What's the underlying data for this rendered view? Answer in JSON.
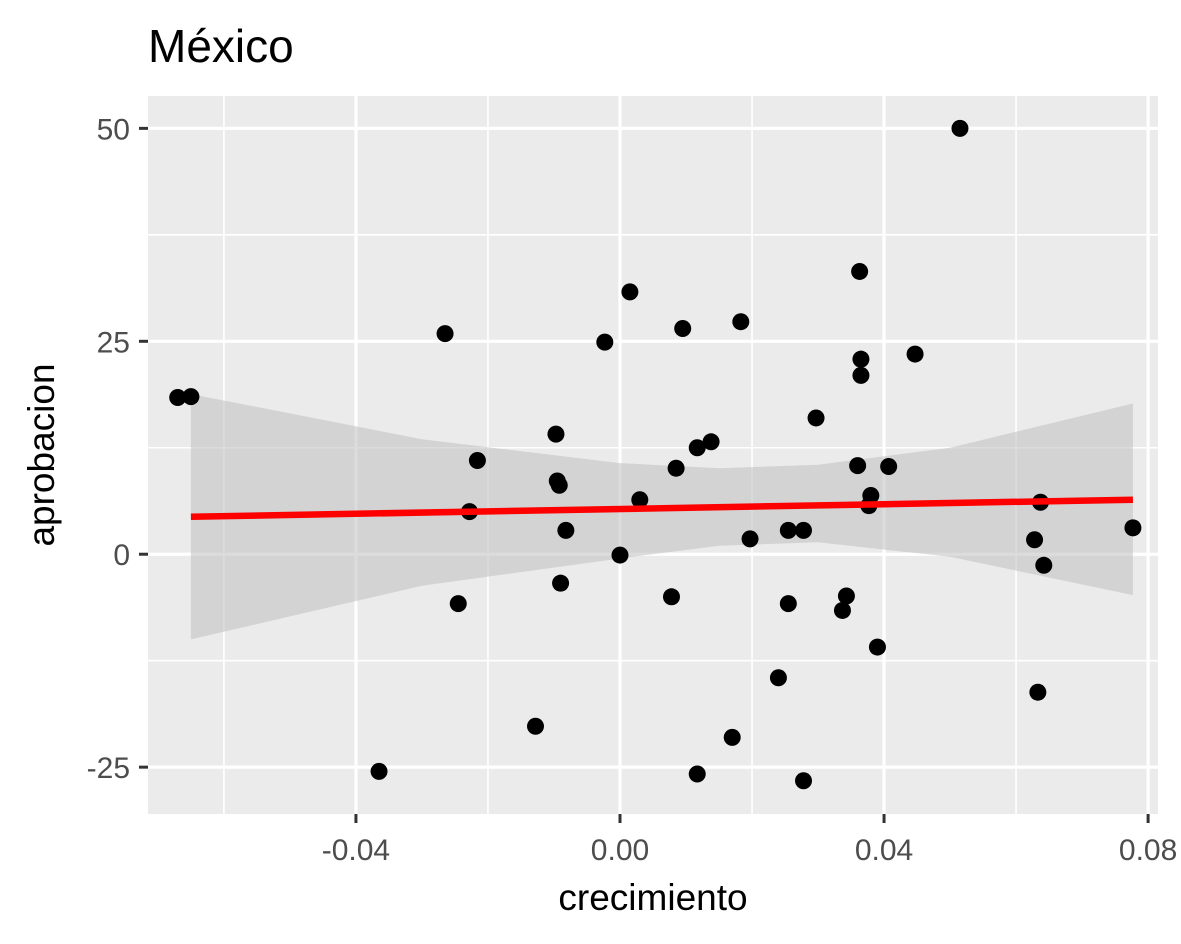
{
  "chart_data": {
    "type": "scatter",
    "title": "México",
    "xlabel": "crecimiento",
    "ylabel": "aprobacion",
    "xlim": [
      -0.0715,
      0.0815
    ],
    "ylim": [
      -30.5,
      53.8
    ],
    "x_ticks": [
      -0.04,
      0.0,
      0.04,
      0.08
    ],
    "x_tick_labels": [
      "-0.04",
      "0.00",
      "0.04",
      "0.08"
    ],
    "y_ticks": [
      -25,
      0,
      25,
      50
    ],
    "y_tick_labels": [
      "-25",
      "0",
      "25",
      "50"
    ],
    "grid": true,
    "legend": "none",
    "colors": {
      "panel": "#ebebeb",
      "grid": "#ffffff",
      "points": "#000000",
      "fit_line": "#ff0000",
      "ribbon": "#bfbfbf"
    },
    "points": [
      {
        "x": -0.065,
        "y": 18.5
      },
      {
        "x": -0.067,
        "y": 18.4
      },
      {
        "x": -0.0365,
        "y": -25.5
      },
      {
        "x": -0.0265,
        "y": 25.9
      },
      {
        "x": -0.0245,
        "y": -5.8
      },
      {
        "x": -0.0228,
        "y": 5.0
      },
      {
        "x": -0.0216,
        "y": 11.0
      },
      {
        "x": -0.0128,
        "y": -20.2
      },
      {
        "x": -0.0097,
        "y": 14.1
      },
      {
        "x": -0.0095,
        "y": 8.6
      },
      {
        "x": -0.0092,
        "y": 8.1
      },
      {
        "x": -0.009,
        "y": -3.4
      },
      {
        "x": -0.0082,
        "y": 2.8
      },
      {
        "x": -0.0023,
        "y": 24.9
      },
      {
        "x": 0.0,
        "y": -0.1
      },
      {
        "x": 0.0015,
        "y": 30.8
      },
      {
        "x": 0.003,
        "y": 6.4
      },
      {
        "x": 0.0078,
        "y": -5.0
      },
      {
        "x": 0.0085,
        "y": 10.1
      },
      {
        "x": 0.0095,
        "y": 26.5
      },
      {
        "x": 0.0117,
        "y": 12.5
      },
      {
        "x": 0.0117,
        "y": -25.8
      },
      {
        "x": 0.0138,
        "y": 13.2
      },
      {
        "x": 0.017,
        "y": -21.5
      },
      {
        "x": 0.0183,
        "y": 27.3
      },
      {
        "x": 0.0197,
        "y": 1.8
      },
      {
        "x": 0.024,
        "y": -14.5
      },
      {
        "x": 0.0255,
        "y": -5.8
      },
      {
        "x": 0.0255,
        "y": 2.8
      },
      {
        "x": 0.0278,
        "y": 2.8
      },
      {
        "x": 0.0278,
        "y": -26.6
      },
      {
        "x": 0.0297,
        "y": 16.0
      },
      {
        "x": 0.0337,
        "y": -6.6
      },
      {
        "x": 0.0343,
        "y": -4.9
      },
      {
        "x": 0.036,
        "y": 10.4
      },
      {
        "x": 0.0363,
        "y": 33.2
      },
      {
        "x": 0.0365,
        "y": 22.9
      },
      {
        "x": 0.0365,
        "y": 21.0
      },
      {
        "x": 0.0377,
        "y": 5.7
      },
      {
        "x": 0.038,
        "y": 6.9
      },
      {
        "x": 0.039,
        "y": -10.9
      },
      {
        "x": 0.0407,
        "y": 10.3
      },
      {
        "x": 0.0447,
        "y": 23.5
      },
      {
        "x": 0.0515,
        "y": 50.0
      },
      {
        "x": 0.0628,
        "y": 1.7
      },
      {
        "x": 0.0633,
        "y": -16.2
      },
      {
        "x": 0.0637,
        "y": 6.1
      },
      {
        "x": 0.0642,
        "y": -1.3
      },
      {
        "x": 0.0777,
        "y": 3.1
      }
    ],
    "fit_line": {
      "x": [
        -0.065,
        0.0777
      ],
      "y": [
        4.4,
        6.4
      ]
    },
    "confidence_band": {
      "x": [
        -0.065,
        -0.03,
        0.0,
        0.015,
        0.03,
        0.05,
        0.0777
      ],
      "upper": [
        18.8,
        13.5,
        10.7,
        10.1,
        10.5,
        12.5,
        17.7
      ],
      "lower": [
        -10.0,
        -3.7,
        -0.5,
        1.0,
        1.4,
        -0.3,
        -4.8
      ]
    }
  }
}
